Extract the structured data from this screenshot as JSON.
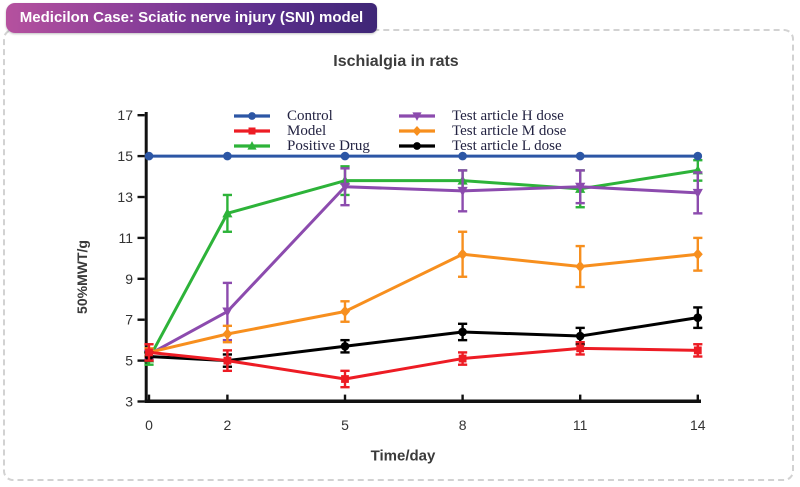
{
  "badge": {
    "label": "Medicilon Case: Sciatic nerve injury (SNI) model"
  },
  "frame": {
    "border_color": "#d2d2d2",
    "badge_gradient": [
      "#b5519e",
      "#3e2676"
    ]
  },
  "chart_data": {
    "type": "line",
    "title": "Ischialgia in rats",
    "xlabel": "Time/day",
    "ylabel": "50%MWT/g",
    "x": [
      0,
      2,
      5,
      8,
      11,
      14
    ],
    "xlim": [
      0,
      14
    ],
    "ylim": [
      3,
      17
    ],
    "yticks": [
      3,
      5,
      7,
      9,
      11,
      13,
      15,
      17
    ],
    "grid": false,
    "legend_position": "top-inside-two-columns",
    "error_bars": true,
    "series": [
      {
        "name": "Control",
        "color": "#2c56a5",
        "marker": "circle",
        "values": [
          15,
          15,
          15,
          15,
          15,
          15
        ],
        "errors": [
          0,
          0,
          0,
          0,
          0,
          0
        ]
      },
      {
        "name": "Model",
        "color": "#ed1c24",
        "marker": "square",
        "values": [
          5.4,
          5.0,
          4.1,
          5.1,
          5.6,
          5.5
        ],
        "errors": [
          0.4,
          0.5,
          0.4,
          0.3,
          0.3,
          0.3
        ]
      },
      {
        "name": "Positive Drug",
        "color": "#2db339",
        "marker": "triangle-up",
        "values": [
          5.1,
          12.2,
          13.8,
          13.8,
          13.4,
          14.3
        ],
        "errors": [
          0.3,
          0.9,
          0.7,
          0.5,
          0.9,
          0.5
        ]
      },
      {
        "name": "Test article H dose",
        "color": "#8c4bae",
        "marker": "triangle-down",
        "values": [
          5.3,
          7.4,
          13.5,
          13.3,
          13.5,
          13.2
        ],
        "errors": [
          0.2,
          1.4,
          0.9,
          1.0,
          0.8,
          1.0
        ]
      },
      {
        "name": "Test article M dose",
        "color": "#f78f1e",
        "marker": "diamond",
        "values": [
          5.4,
          6.3,
          7.4,
          10.2,
          9.6,
          10.2
        ],
        "errors": [
          0.2,
          0.4,
          0.5,
          1.1,
          1.0,
          0.8
        ]
      },
      {
        "name": "Test article L dose",
        "color": "#000000",
        "marker": "circle",
        "values": [
          5.2,
          5.0,
          5.7,
          6.4,
          6.2,
          7.1
        ],
        "errors": [
          0.2,
          0.3,
          0.3,
          0.4,
          0.4,
          0.5
        ]
      }
    ]
  }
}
